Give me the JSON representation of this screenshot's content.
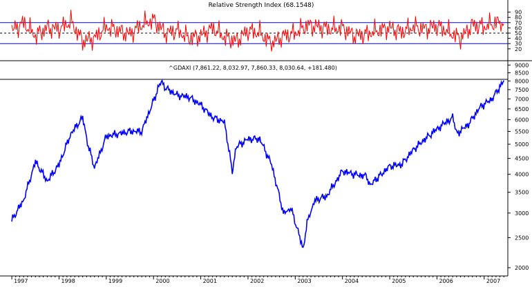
{
  "chart_data": [
    {
      "type": "line",
      "title": "Relative Strength Index (68.1548)",
      "ylim": [
        0,
        100
      ],
      "yticks": [
        20,
        30,
        40,
        50,
        60,
        70,
        80,
        90
      ],
      "reference_lines": [
        30,
        50,
        70
      ],
      "series": [
        {
          "color": "#ff0000",
          "x": [
            "1997-01",
            "1997-04",
            "1997-07",
            "1997-10",
            "1998-01",
            "1998-04",
            "1998-07",
            "1998-10",
            "1999-01",
            "1999-04",
            "1999-07",
            "1999-10",
            "2000-01",
            "2000-04",
            "2000-07",
            "2000-10",
            "2001-01",
            "2001-04",
            "2001-07",
            "2001-10",
            "2002-01",
            "2002-04",
            "2002-07",
            "2002-10",
            "2003-01",
            "2003-04",
            "2003-07",
            "2003-10",
            "2004-01",
            "2004-04",
            "2004-07",
            "2004-10",
            "2005-01",
            "2005-04",
            "2005-07",
            "2005-10",
            "2006-01",
            "2006-04",
            "2006-07",
            "2006-10",
            "2007-01",
            "2007-04",
            "2007-06"
          ],
          "y": [
            55,
            70,
            45,
            60,
            58,
            72,
            35,
            40,
            62,
            55,
            48,
            66,
            75,
            50,
            55,
            40,
            45,
            60,
            42,
            35,
            55,
            50,
            30,
            45,
            50,
            65,
            62,
            58,
            60,
            45,
            48,
            55,
            60,
            52,
            62,
            58,
            64,
            52,
            40,
            66,
            62,
            70,
            68
          ]
        }
      ]
    },
    {
      "type": "line",
      "title": "^GDAXI (7,861.22, 8,032.97, 7,860.33, 8,030.64, +181.480)",
      "scale": "log",
      "ylim": [
        1900,
        9200
      ],
      "yticks": [
        2000,
        2500,
        3000,
        3500,
        4000,
        4500,
        5000,
        5500,
        6000,
        6500,
        7000,
        7500,
        8000,
        8500,
        9000
      ],
      "xtick_labels": [
        "1997",
        "1998",
        "1999",
        "2000",
        "2001",
        "2002",
        "2003",
        "2004",
        "2005",
        "2006",
        "2007"
      ],
      "series": [
        {
          "color": "#0000ff",
          "x": [
            "1997-01",
            "1997-04",
            "1997-07",
            "1997-10",
            "1998-01",
            "1998-04",
            "1998-07",
            "1998-08",
            "1998-10",
            "1999-01",
            "1999-04",
            "1999-07",
            "1999-10",
            "2000-01",
            "2000-03",
            "2000-04",
            "2000-07",
            "2000-10",
            "2001-01",
            "2001-04",
            "2001-07",
            "2001-09",
            "2001-10",
            "2002-01",
            "2002-04",
            "2002-07",
            "2002-10",
            "2002-12",
            "2003-03",
            "2003-04",
            "2003-06",
            "2003-09",
            "2004-01",
            "2004-04",
            "2004-07",
            "2004-08",
            "2004-10",
            "2005-01",
            "2005-04",
            "2005-07",
            "2005-10",
            "2006-01",
            "2006-05",
            "2006-06",
            "2006-09",
            "2006-12",
            "2007-03",
            "2007-06"
          ],
          "y": [
            2850,
            3300,
            4400,
            3800,
            4300,
            5400,
            6100,
            5200,
            4200,
            5300,
            5400,
            5500,
            5500,
            6900,
            8050,
            7600,
            7200,
            7100,
            6700,
            6100,
            5900,
            4100,
            4900,
            5200,
            5200,
            4300,
            3000,
            3100,
            2300,
            2800,
            3300,
            3400,
            4100,
            4000,
            3950,
            3700,
            3900,
            4250,
            4300,
            4800,
            5200,
            5600,
            6100,
            5400,
            5800,
            6600,
            7000,
            8030
          ]
        }
      ]
    }
  ]
}
